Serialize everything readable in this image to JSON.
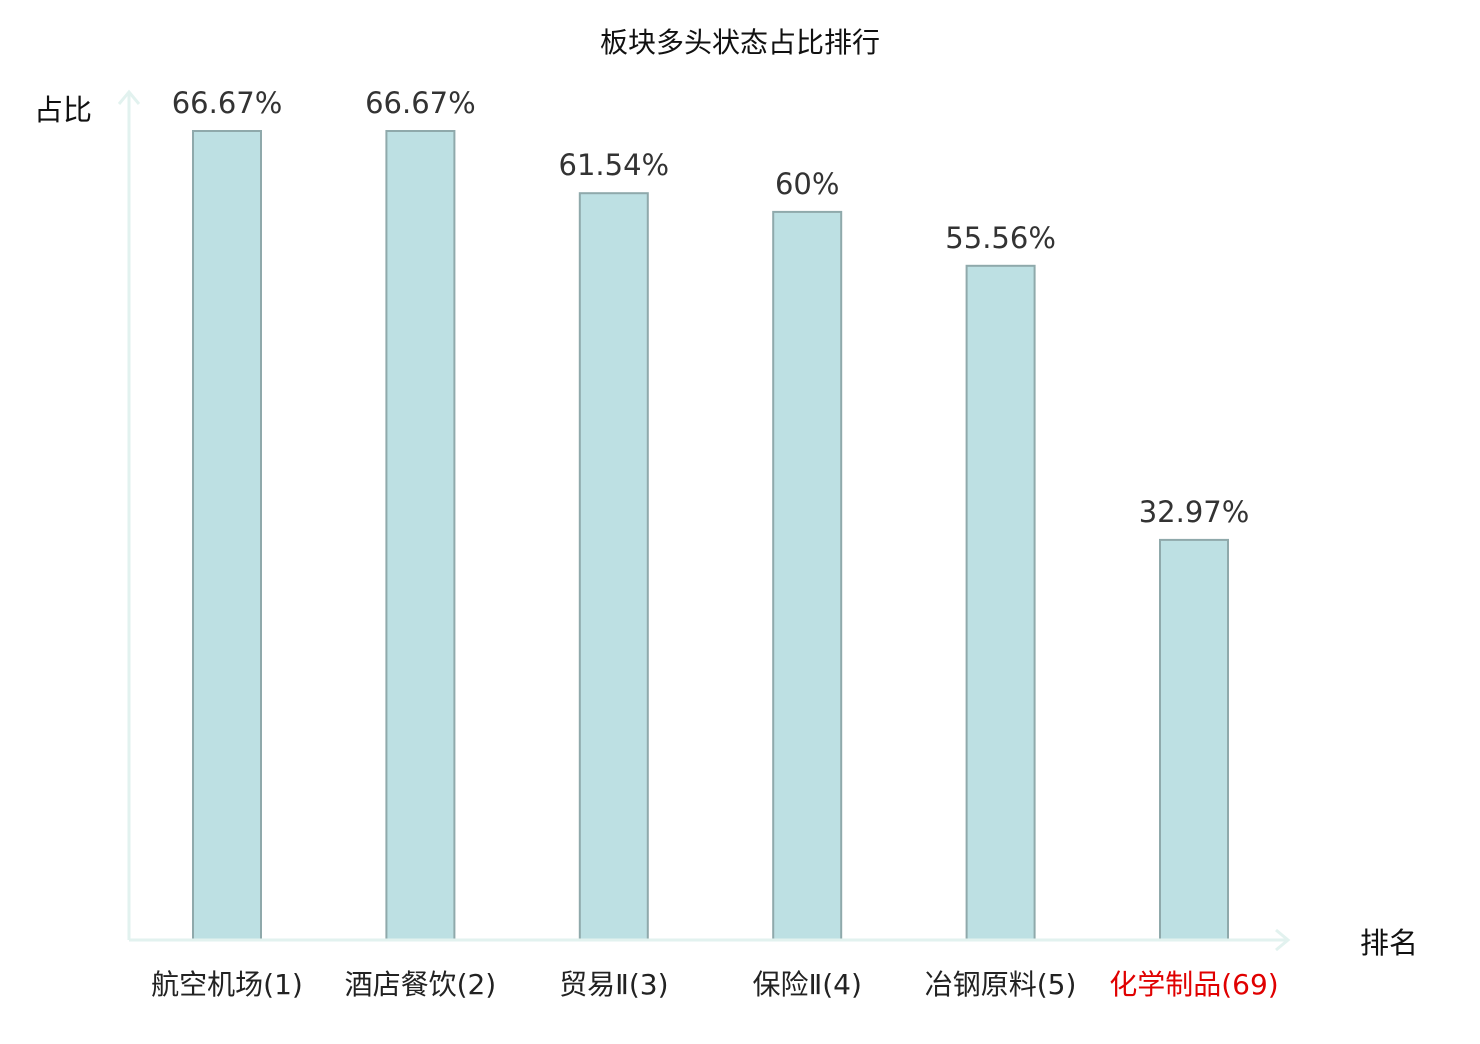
{
  "chart_data": {
    "type": "bar",
    "title": "板块多头状态占比排行",
    "xlabel": "排名",
    "ylabel": "占比",
    "categories": [
      "航空机场(1)",
      "酒店餐饮(2)",
      "贸易Ⅱ(3)",
      "保险Ⅱ(4)",
      "冶钢原料(5)",
      "化学制品(69)"
    ],
    "values": [
      66.67,
      66.67,
      61.54,
      60,
      55.56,
      32.97
    ],
    "value_labels": [
      "66.67%",
      "66.67%",
      "61.54%",
      "60%",
      "55.56%",
      "32.97%"
    ],
    "highlight_category": "化学制品(69)",
    "ylim": [
      0,
      66.67
    ],
    "grid": false,
    "legend": "none",
    "colors": {
      "bar_fill": "#bde0e3",
      "bar_stroke": "#8fa9ab",
      "axis": "#e2f2ef",
      "text": "#333333",
      "category_text": "#222222",
      "highlight_text": "#e00000"
    }
  }
}
